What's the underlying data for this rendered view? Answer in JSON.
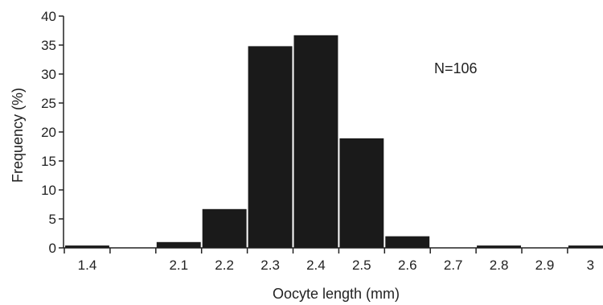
{
  "chart_data": {
    "type": "bar",
    "title": "",
    "xlabel": "Oocyte length (mm)",
    "ylabel": "Frequency  (%)",
    "ylim": [
      0,
      40
    ],
    "yticks": [
      0,
      5,
      10,
      15,
      20,
      25,
      30,
      35,
      40
    ],
    "xtick_labels": [
      "1.4",
      "2.1",
      "2.2",
      "2.3",
      "2.4",
      "2.5",
      "2.6",
      "2.7",
      "2.8",
      "2.9",
      "3"
    ],
    "categories": [
      "1.4",
      "",
      "2.1",
      "2.2",
      "2.3",
      "2.4",
      "2.5",
      "2.6",
      "2.7",
      "2.8",
      "2.9",
      "3"
    ],
    "values": [
      0.4,
      0,
      1.0,
      6.7,
      34.8,
      36.7,
      18.9,
      2.0,
      0,
      0.4,
      0,
      0.4
    ],
    "annotation": "N=106",
    "grid": false,
    "bar_color": "#1a1a1a",
    "axis_color": "#222222"
  }
}
